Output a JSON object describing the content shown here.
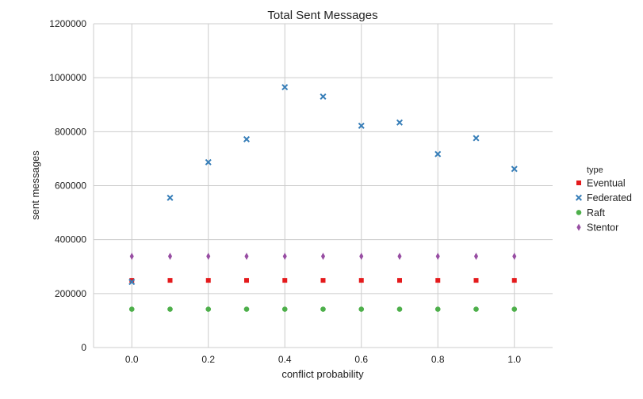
{
  "chart_data": {
    "type": "scatter",
    "title": "Total Sent Messages",
    "xlabel": "conflict probability",
    "ylabel": "sent messages",
    "xlim": [
      -0.1,
      1.1
    ],
    "ylim": [
      0,
      1200000
    ],
    "xticks": [
      "0.0",
      "0.2",
      "0.4",
      "0.6",
      "0.8",
      "1.0"
    ],
    "yticks": [
      "0",
      "200000",
      "400000",
      "600000",
      "800000",
      "1000000",
      "1200000"
    ],
    "grid": true,
    "legend_position": "right",
    "legend_title": "type",
    "x": [
      0.0,
      0.1,
      0.2,
      0.3,
      0.4,
      0.5,
      0.6,
      0.7,
      0.8,
      0.9,
      1.0
    ],
    "series": [
      {
        "name": "Eventual",
        "color": "#e41a1c",
        "marker": "square",
        "values": [
          249000,
          249000,
          249000,
          249000,
          249000,
          249000,
          249000,
          249000,
          249000,
          249000,
          249000
        ]
      },
      {
        "name": "Federated",
        "color": "#377eb8",
        "marker": "x",
        "values": [
          243000,
          555000,
          687000,
          772000,
          965000,
          930000,
          822000,
          834000,
          717000,
          776000,
          662000
        ]
      },
      {
        "name": "Raft",
        "color": "#4daf4a",
        "marker": "circle",
        "values": [
          142000,
          142000,
          142000,
          142000,
          142000,
          142000,
          142000,
          142000,
          142000,
          142000,
          142000
        ]
      },
      {
        "name": "Stentor",
        "color": "#984ea3",
        "marker": "diamond",
        "values": [
          338000,
          338000,
          338000,
          338000,
          338000,
          338000,
          338000,
          338000,
          338000,
          338000,
          338000
        ]
      }
    ]
  }
}
